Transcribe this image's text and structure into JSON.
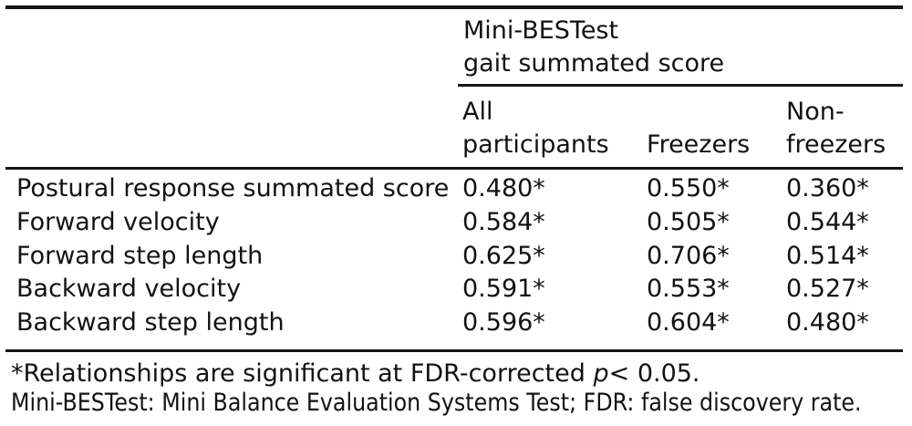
{
  "table": {
    "spanner_header": {
      "line1": "Mini-BESTest",
      "line2": "gait summated score"
    },
    "columns": [
      {
        "lines": [
          "All",
          "participants"
        ]
      },
      {
        "lines": [
          "Freezers"
        ]
      },
      {
        "lines": [
          "Non-",
          "freezers"
        ]
      }
    ],
    "rows": [
      {
        "label": "Postural response summated score",
        "values": [
          "0.480*",
          "0.550*",
          "0.360*"
        ]
      },
      {
        "label": "Forward velocity",
        "values": [
          "0.584*",
          "0.505*",
          "0.544*"
        ]
      },
      {
        "label": "Forward step length",
        "values": [
          "0.625*",
          "0.706*",
          "0.514*"
        ]
      },
      {
        "label": "Backward velocity",
        "values": [
          "0.591*",
          "0.553*",
          "0.527*"
        ]
      },
      {
        "label": "Backward step length",
        "values": [
          "0.596*",
          "0.604*",
          "0.480*"
        ]
      }
    ]
  },
  "footnotes": {
    "significance_prefix": "*Relationships are significant at FDR-corrected ",
    "significance_p": "p",
    "significance_suffix": "< 0.05.",
    "abbreviations": "Mini-BESTest: Mini Balance Evaluation Systems Test; FDR: false discovery rate."
  },
  "colors": {
    "rule": "#161616",
    "text": "#121212",
    "background": "#ffffff"
  }
}
